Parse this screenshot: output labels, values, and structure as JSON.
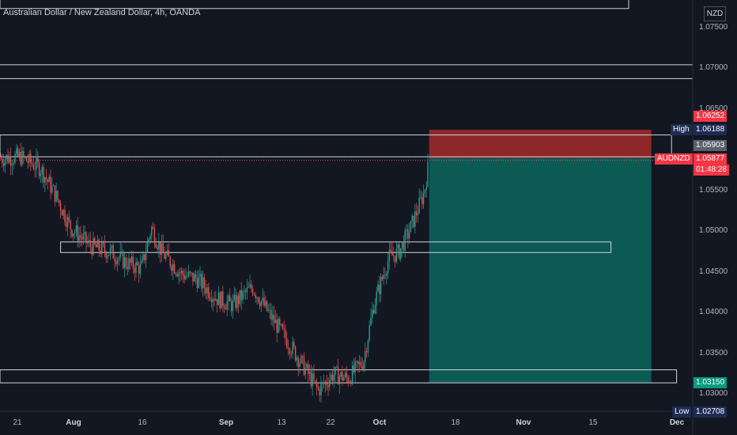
{
  "header": {
    "title": "Australian Dollar / New Zealand Dollar, 4h, OANDA",
    "currency": "NZD"
  },
  "price_axis": {
    "ticks": [
      "1.07500",
      "1.07000",
      "1.06500",
      "1.05500",
      "1.05000",
      "1.04500",
      "1.04000",
      "1.03500",
      "1.03000"
    ]
  },
  "price_tags": {
    "stop": "1.06252",
    "high_label": "High",
    "high_value": "1.06188",
    "entry": "1.05903",
    "symbol": "AUDNZD",
    "last": "1.05877",
    "countdown": "01:48:28",
    "target": "1.03150",
    "low_label": "Low",
    "low_value": "1.02708"
  },
  "time_axis": {
    "labels": [
      {
        "text": "21",
        "bold": false
      },
      {
        "text": "Aug",
        "bold": true
      },
      {
        "text": "16",
        "bold": false
      },
      {
        "text": "Sep",
        "bold": true
      },
      {
        "text": "13",
        "bold": false
      },
      {
        "text": "22",
        "bold": false
      },
      {
        "text": "Oct",
        "bold": true
      },
      {
        "text": "18",
        "bold": false
      },
      {
        "text": "Nov",
        "bold": true
      },
      {
        "text": "15",
        "bold": false
      },
      {
        "text": "Dec",
        "bold": true
      }
    ]
  },
  "colors": {
    "background": "#131722",
    "up": "#26a69a",
    "down": "#ef5350",
    "stop_zone": "#a52a2a",
    "target_zone": "#0b5e57",
    "high_tag": "#1e3a8a",
    "entry_tag": "#5d606b",
    "target_tag": "#089981"
  },
  "chart_data": {
    "type": "candlestick",
    "title": "Australian Dollar / New Zealand Dollar, 4h, OANDA",
    "price_range": [
      1.027,
      1.0765
    ],
    "dates": [
      "2021-07-19",
      "2021-12-01"
    ],
    "close_path": [
      [
        "2021-07-19",
        1.059
      ],
      [
        "2021-07-23",
        1.0592
      ],
      [
        "2021-07-27",
        1.0578
      ],
      [
        "2021-07-30",
        1.0545
      ],
      [
        "2021-08-02",
        1.0505
      ],
      [
        "2021-08-06",
        1.0482
      ],
      [
        "2021-08-10",
        1.0475
      ],
      [
        "2021-08-13",
        1.0462
      ],
      [
        "2021-08-16",
        1.0455
      ],
      [
        "2021-08-18",
        1.0505
      ],
      [
        "2021-08-20",
        1.0475
      ],
      [
        "2021-08-24",
        1.0448
      ],
      [
        "2021-08-27",
        1.0442
      ],
      [
        "2021-08-31",
        1.0418
      ],
      [
        "2021-09-03",
        1.041
      ],
      [
        "2021-09-07",
        1.0432
      ],
      [
        "2021-09-10",
        1.0402
      ],
      [
        "2021-09-14",
        1.0365
      ],
      [
        "2021-09-17",
        1.0336
      ],
      [
        "2021-09-20",
        1.0305
      ],
      [
        "2021-09-23",
        1.0325
      ],
      [
        "2021-09-26",
        1.032
      ],
      [
        "2021-09-29",
        1.0342
      ],
      [
        "2021-10-01",
        1.041
      ],
      [
        "2021-10-04",
        1.0468
      ],
      [
        "2021-10-06",
        1.0475
      ],
      [
        "2021-10-08",
        1.05
      ],
      [
        "2021-10-11",
        1.0548
      ],
      [
        "2021-10-12",
        1.0588
      ]
    ],
    "horizontal_lines": [
      1.0705,
      1.0688
    ],
    "zones": [
      {
        "from": 1.06188,
        "to": 1.0592,
        "start": "2021-07-19",
        "end": "2021-11-29"
      },
      {
        "from": 1.04875,
        "to": 1.04745,
        "start": "2021-07-31",
        "end": "2021-11-17"
      },
      {
        "from": 1.03305,
        "to": 1.03145,
        "start": "2021-07-19",
        "end": "2021-11-30"
      }
    ],
    "top_box_bottom": 1.0774,
    "position": {
      "side": "short",
      "entry": 1.05903,
      "stop": 1.06252,
      "target": 1.0315,
      "start": "2021-10-12",
      "end": "2021-11-25"
    },
    "last_price": 1.05877,
    "high": 1.06188,
    "low": 1.02708
  }
}
